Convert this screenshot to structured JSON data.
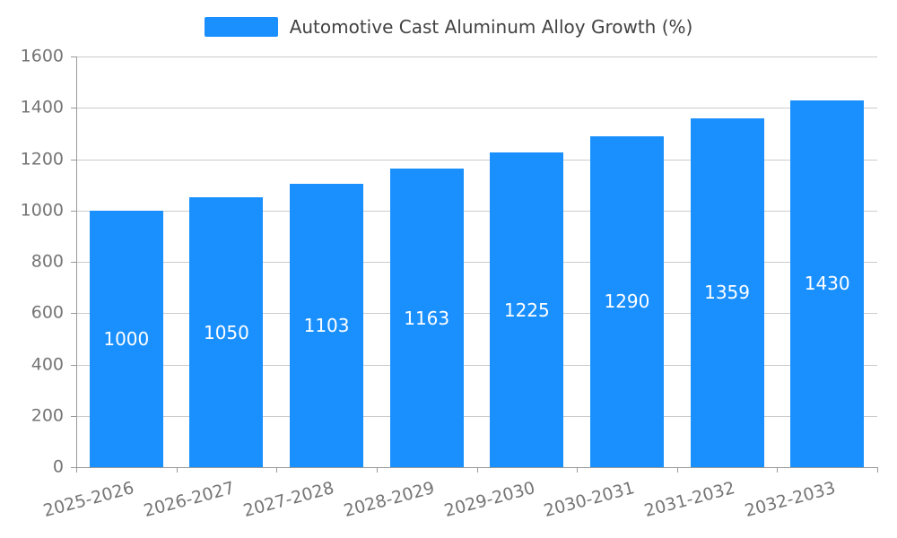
{
  "chart_data": {
    "type": "bar",
    "title": "Automotive Cast Aluminum Alloy Growth (%)",
    "categories": [
      "2025-2026",
      "2026-2027",
      "2027-2028",
      "2028-2029",
      "2029-2030",
      "2030-2031",
      "2031-2032",
      "2032-2033"
    ],
    "series": [
      {
        "name": "Automotive Cast Aluminum Alloy Growth (%)",
        "values": [
          1000,
          1050,
          1103,
          1163,
          1225,
          1290,
          1359,
          1430
        ]
      }
    ],
    "xlabel": "",
    "ylabel": "",
    "ylim": [
      0,
      1600
    ],
    "yticks": [
      0,
      200,
      400,
      600,
      800,
      1000,
      1200,
      1400,
      1600
    ],
    "grid": true,
    "legend_position": "top",
    "value_labels_inside_bars": true
  },
  "colors": {
    "bar": "#1a90ff",
    "grid": "#cccccc",
    "axis": "#999999",
    "tick_text": "#757575",
    "title_text": "#424242",
    "value_label_text": "#ffffff"
  }
}
